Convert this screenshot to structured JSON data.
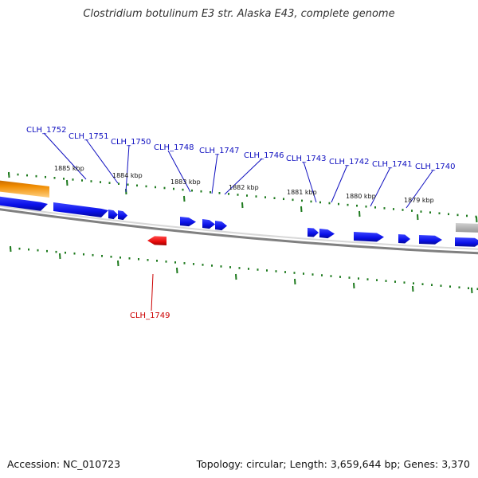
{
  "title": "Clostridium botulinum E3 str. Alaska E43, complete genome",
  "footer": {
    "accession": "Accession: NC_010723",
    "summary": "Topology: circular; Length: 3,659,644 bp; Genes: 3,370"
  },
  "colors": {
    "forward_gene": "#0a10e8",
    "reverse_gene": "#e80a0a",
    "label_forward": "#1010c0",
    "label_reverse": "#cc0000",
    "tick": "#1e7a1e",
    "backbone": "#808080",
    "orange_feature": "#f08c00",
    "gray_feature": "#b4b4b4"
  },
  "scale_labels": [
    "1885 kbp",
    "1884 kbp",
    "1883 kbp",
    "1882 kbp",
    "1881 kbp",
    "1880 kbp",
    "1879 kbp"
  ],
  "genes_forward": [
    "CLH_1752",
    "CLH_1751",
    "CLH_1750",
    "CLH_1748",
    "CLH_1747",
    "CLH_1746",
    "CLH_1743",
    "CLH_1742",
    "CLH_1741",
    "CLH_1740"
  ],
  "genes_reverse": [
    "CLH_1749"
  ]
}
